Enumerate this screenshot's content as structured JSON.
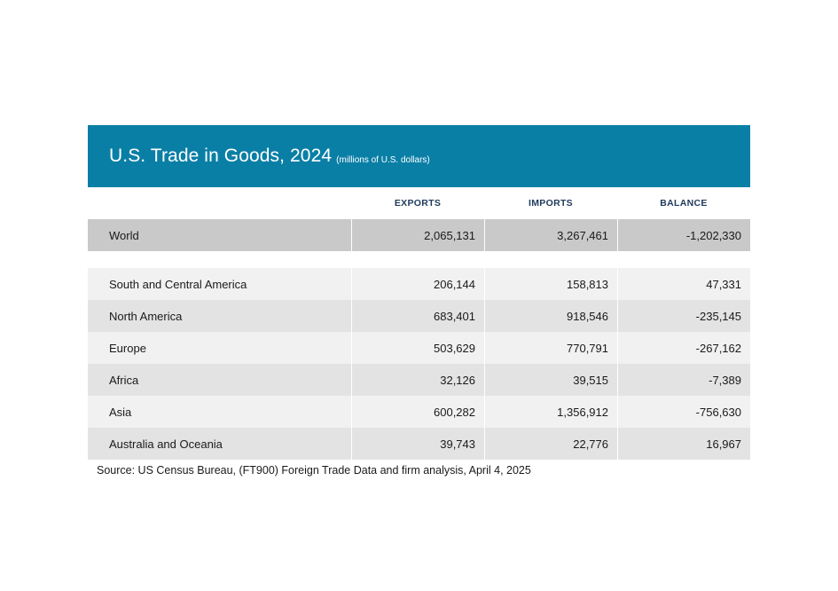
{
  "chart_data": {
    "type": "table",
    "title": "U.S. Trade in Goods, 2024",
    "subtitle": "(millions of U.S. dollars)",
    "columns": [
      "EXPORTS",
      "IMPORTS",
      "BALANCE"
    ],
    "world": {
      "label": "World",
      "values": [
        "2,065,131",
        "3,267,461",
        "-1,202,330"
      ]
    },
    "rows": [
      {
        "label": "South and Central America",
        "values": [
          "206,144",
          "158,813",
          "47,331"
        ]
      },
      {
        "label": "North America",
        "values": [
          "683,401",
          "918,546",
          "-235,145"
        ]
      },
      {
        "label": "Europe",
        "values": [
          "503,629",
          "770,791",
          "-267,162"
        ]
      },
      {
        "label": "Africa",
        "values": [
          "32,126",
          "39,515",
          "-7,389"
        ]
      },
      {
        "label": "Asia",
        "values": [
          "600,282",
          "1,356,912",
          "-756,630"
        ]
      },
      {
        "label": "Australia and Oceania",
        "values": [
          "39,743",
          "22,776",
          "16,967"
        ]
      }
    ],
    "source": "Source: US Census Bureau, (FT900) Foreign Trade Data and firm analysis, April 4, 2025"
  },
  "colors": {
    "title_bar": "#0a7fa6",
    "header_text": "#1f3a5c",
    "world_row": "#c9c9c9",
    "row_light": "#f1f1f1",
    "row_dark": "#e3e3e3"
  }
}
